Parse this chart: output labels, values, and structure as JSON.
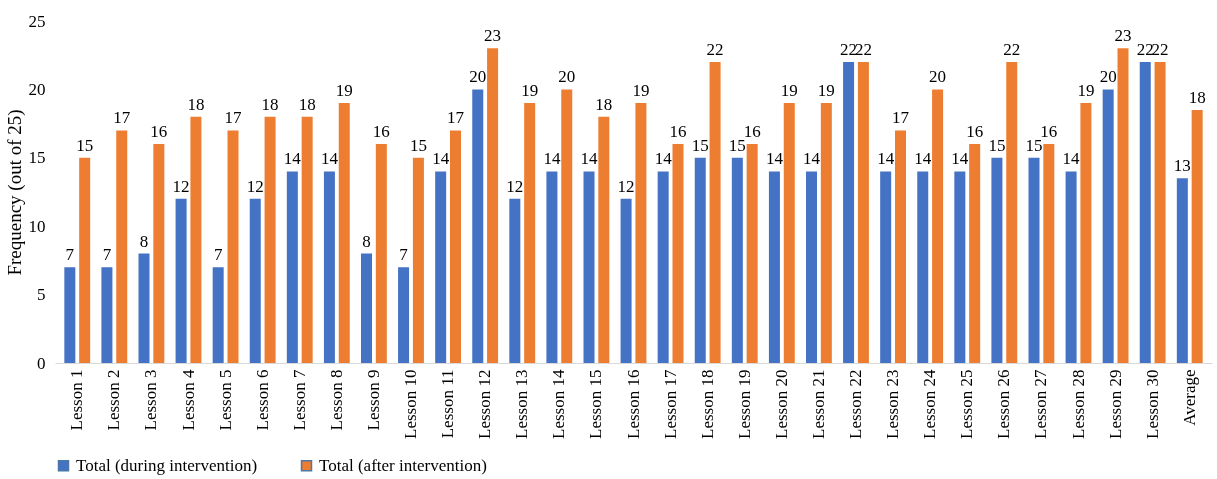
{
  "chart_data": {
    "type": "bar",
    "ylabel": "Frequency (out of 25)",
    "categories": [
      "Lesson 1",
      "Lesson 2",
      "Lesson 3",
      "Lesson 4",
      "Lesson 5",
      "Lesson 6",
      "Lesson 7",
      "Lesson 8",
      "Lesson 9",
      "Lesson 10",
      "Lesson 11",
      "Lesson 12",
      "Lesson 13",
      "Lesson 14",
      "Lesson 15",
      "Lesson 16",
      "Lesson 17",
      "Lesson 18",
      "Lesson 19",
      "Lesson 20",
      "Lesson 21",
      "Lesson 22",
      "Lesson 23",
      "Lesson 24",
      "Lesson 25",
      "Lesson 26",
      "Lesson 27",
      "Lesson 28",
      "Lesson 29",
      "Lesson 30",
      "Average"
    ],
    "series": [
      {
        "name": "Total (during intervention)",
        "color": "#4472c4",
        "values": [
          7,
          7,
          8,
          12,
          7,
          12,
          14,
          14,
          8,
          7,
          14,
          20,
          12,
          14,
          14,
          12,
          14,
          15,
          15,
          14,
          14,
          22,
          14,
          14,
          14,
          15,
          15,
          14,
          20,
          22,
          13.5
        ],
        "value_labels": [
          "7",
          "7",
          "8",
          "12",
          "7",
          "12",
          "14",
          "14",
          "8",
          "7",
          "14",
          "20",
          "12",
          "14",
          "14",
          "12",
          "14",
          "15",
          "15",
          "14",
          "14",
          "22",
          "14",
          "14",
          "14",
          "15",
          "15",
          "14",
          "20",
          "22",
          "13"
        ]
      },
      {
        "name": "Total (after intervention)",
        "color": "#ed7d31",
        "values": [
          15,
          17,
          16,
          18,
          17,
          18,
          18,
          19,
          16,
          15,
          17,
          23,
          19,
          20,
          18,
          19,
          16,
          22,
          16,
          19,
          19,
          22,
          17,
          20,
          16,
          22,
          16,
          19,
          23,
          22,
          18.5
        ],
        "value_labels": [
          "15",
          "17",
          "16",
          "18",
          "17",
          "18",
          "18",
          "19",
          "16",
          "15",
          "17",
          "23",
          "19",
          "20",
          "18",
          "19",
          "16",
          "22",
          "16",
          "19",
          "19",
          "22",
          "17",
          "20",
          "16",
          "22",
          "16",
          "19",
          "23",
          "22",
          "18"
        ]
      }
    ],
    "ylim": [
      0,
      25
    ],
    "yticks": [
      0,
      5,
      10,
      15,
      20,
      25
    ],
    "grid": false,
    "legend": "bottom"
  }
}
